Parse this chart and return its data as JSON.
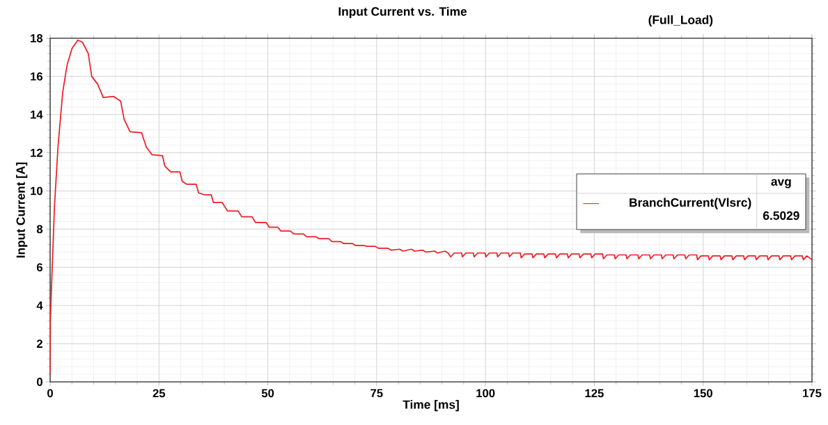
{
  "chart_data": {
    "type": "line",
    "title": "Input Current vs. Time",
    "subtitle": "(Full_Load)",
    "xlabel": "Time [ms]",
    "ylabel": "Input Current [A]",
    "annotations": [
      "avg",
      "6.5029"
    ],
    "xlim": [
      0,
      175
    ],
    "ylim": [
      0,
      18
    ],
    "xticks": [
      0,
      25,
      50,
      75,
      100,
      125,
      150,
      175
    ],
    "yticks": [
      0,
      2,
      4,
      6,
      8,
      10,
      12,
      14,
      16,
      18
    ],
    "grid": true,
    "legend": "right",
    "marker": "none",
    "line_style": "solid",
    "series": [
      {
        "name": "BranchCurrent(Vlsrc)",
        "color": "#ee1c25",
        "x": [
          0,
          0.05,
          0.3,
          1.0,
          1.8,
          2.9,
          3.9,
          5.0,
          6.35,
          7.4,
          8.75,
          9.55,
          10.9,
          12.2,
          14.6,
          16.2,
          17.0,
          18.35,
          21.0,
          22.1,
          23.4,
          25.8,
          26.35,
          27.7,
          29.8,
          30.35,
          31.4,
          33.55,
          34.1,
          35.4,
          37.0,
          37.5,
          39.5,
          40.75,
          43.2,
          44.0,
          46.4,
          47.15,
          49.6,
          50.35,
          52.3,
          53.0,
          55.2,
          55.95,
          58.2,
          58.9,
          61.1,
          61.8,
          64.0,
          64.75,
          66.7,
          67.4,
          69.4,
          70.1,
          72.0,
          72.75,
          74.7,
          75.4,
          77.6,
          78.35,
          80.3,
          81.0,
          83.0,
          83.7,
          85.6,
          86.35,
          88.3,
          89.0,
          90.7,
          91.4,
          92.0,
          92.8,
          94.5,
          94.7,
          95.5,
          97.2,
          97.4,
          98.2,
          99.9,
          100.1,
          100.9,
          102.6,
          102.8,
          103.6,
          105.3,
          105.5,
          106.3,
          108.0,
          108.2,
          109.0,
          110.7,
          110.9,
          111.7,
          113.4,
          113.6,
          114.4,
          116.1,
          116.3,
          117.1,
          118.8,
          119.0,
          119.8,
          121.5,
          121.7,
          122.5,
          124.2,
          124.4,
          125.2,
          126.9,
          127.1,
          127.9,
          129.6,
          129.8,
          130.6,
          132.3,
          132.5,
          133.3,
          135.0,
          135.2,
          136.0,
          137.7,
          137.9,
          138.7,
          140.4,
          140.6,
          141.4,
          143.1,
          143.3,
          144.1,
          145.8,
          146.0,
          146.8,
          148.5,
          148.7,
          149.5,
          151.2,
          151.4,
          152.2,
          153.9,
          154.1,
          154.9,
          156.6,
          156.8,
          157.6,
          159.3,
          159.5,
          160.3,
          162.0,
          162.2,
          163.0,
          164.7,
          164.9,
          165.7,
          167.4,
          167.6,
          168.4,
          170.1,
          170.3,
          171.1,
          172.8,
          173.0,
          173.8,
          175.0
        ],
        "values": [
          0.4,
          3.2,
          4.9,
          9.2,
          12.3,
          15.2,
          16.6,
          17.45,
          17.9,
          17.8,
          17.2,
          16.0,
          15.6,
          14.9,
          14.95,
          14.7,
          13.75,
          13.1,
          13.05,
          12.3,
          11.9,
          11.85,
          11.3,
          11.0,
          11.0,
          10.5,
          10.35,
          10.35,
          9.9,
          9.8,
          9.8,
          9.4,
          9.4,
          8.95,
          8.95,
          8.65,
          8.65,
          8.35,
          8.35,
          8.1,
          8.1,
          7.9,
          7.9,
          7.75,
          7.75,
          7.6,
          7.6,
          7.5,
          7.5,
          7.35,
          7.35,
          7.25,
          7.25,
          7.15,
          7.15,
          7.1,
          7.1,
          7.0,
          7.0,
          6.9,
          6.95,
          6.85,
          6.95,
          6.85,
          6.9,
          6.8,
          6.85,
          6.75,
          6.85,
          6.75,
          6.55,
          6.75,
          6.75,
          6.55,
          6.75,
          6.75,
          6.55,
          6.75,
          6.75,
          6.55,
          6.75,
          6.75,
          6.55,
          6.75,
          6.75,
          6.55,
          6.75,
          6.75,
          6.5,
          6.7,
          6.7,
          6.5,
          6.7,
          6.7,
          6.5,
          6.7,
          6.7,
          6.5,
          6.7,
          6.7,
          6.5,
          6.7,
          6.7,
          6.5,
          6.7,
          6.7,
          6.5,
          6.7,
          6.7,
          6.45,
          6.65,
          6.65,
          6.45,
          6.65,
          6.65,
          6.45,
          6.65,
          6.65,
          6.45,
          6.65,
          6.65,
          6.45,
          6.65,
          6.65,
          6.45,
          6.65,
          6.65,
          6.45,
          6.65,
          6.65,
          6.45,
          6.65,
          6.65,
          6.4,
          6.6,
          6.6,
          6.4,
          6.6,
          6.6,
          6.4,
          6.6,
          6.6,
          6.4,
          6.6,
          6.6,
          6.4,
          6.6,
          6.6,
          6.4,
          6.6,
          6.6,
          6.4,
          6.6,
          6.6,
          6.4,
          6.6,
          6.6,
          6.4,
          6.6,
          6.6,
          6.4,
          6.6,
          6.4
        ]
      }
    ]
  }
}
